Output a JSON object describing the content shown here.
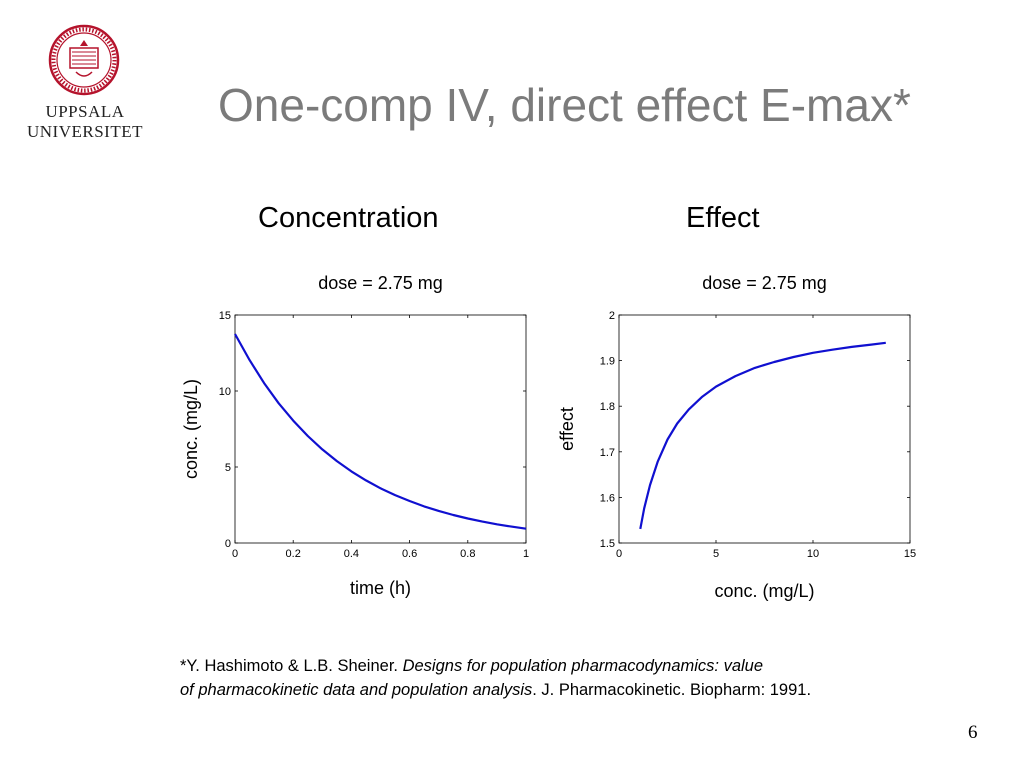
{
  "logo": {
    "line1": "UPPSALA",
    "line2": "UNIVERSITET",
    "color": "#b5132c"
  },
  "slide": {
    "title": "One-comp IV, direct effect E-max*",
    "heading_left": "Concentration",
    "heading_right": "Effect",
    "page_number": "6"
  },
  "citation": {
    "line1_plain": "*Y. Hashimoto & L.B. Sheiner. ",
    "line1_italic": "Designs for population pharmacodynamics: value",
    "line2_italic": "of pharmacokinetic data and population analysis",
    "line2_plain": ". J. Pharmacokinetic. Biopharm: 1991."
  },
  "chart_data": [
    {
      "type": "line",
      "title": "dose = 2.75 mg",
      "xlabel": "time (h)",
      "ylabel": "conc. (mg/L)",
      "xlim": [
        0,
        1
      ],
      "ylim": [
        0,
        15
      ],
      "xticks": [
        "0",
        "0.2",
        "0.4",
        "0.6",
        "0.8",
        "1"
      ],
      "yticks": [
        "0",
        "5",
        "10",
        "15"
      ],
      "grid": false,
      "line_color": "#1010d0",
      "series": [
        {
          "x": [
            0,
            0.05,
            0.1,
            0.15,
            0.2,
            0.25,
            0.3,
            0.35,
            0.4,
            0.45,
            0.5,
            0.55,
            0.6,
            0.65,
            0.7,
            0.75,
            0.8,
            0.85,
            0.9,
            0.95,
            1
          ],
          "y": [
            13.75,
            12.03,
            10.52,
            9.2,
            8.05,
            7.04,
            6.16,
            5.39,
            4.71,
            4.12,
            3.6,
            3.15,
            2.76,
            2.41,
            2.11,
            1.84,
            1.61,
            1.41,
            1.23,
            1.08,
            0.94
          ]
        }
      ]
    },
    {
      "type": "line",
      "title": "dose = 2.75 mg",
      "xlabel": "conc. (mg/L)",
      "ylabel": "effect",
      "xlim": [
        0,
        15
      ],
      "ylim": [
        1.5,
        2
      ],
      "xticks": [
        "0",
        "5",
        "10",
        "15"
      ],
      "yticks": [
        "1.5",
        "1.6",
        "1.7",
        "1.8",
        "1.9",
        "2"
      ],
      "grid": false,
      "line_color": "#1010d0",
      "series": [
        {
          "x": [
            1.1,
            1.3,
            1.6,
            2.0,
            2.5,
            3.0,
            3.6,
            4.3,
            5.0,
            6.0,
            7.0,
            8.0,
            9.0,
            10.0,
            11.0,
            12.0,
            13.0,
            13.75
          ],
          "y": [
            1.531,
            1.576,
            1.627,
            1.679,
            1.727,
            1.762,
            1.793,
            1.821,
            1.843,
            1.866,
            1.884,
            1.897,
            1.908,
            1.917,
            1.924,
            1.93,
            1.935,
            1.939
          ]
        }
      ]
    }
  ]
}
